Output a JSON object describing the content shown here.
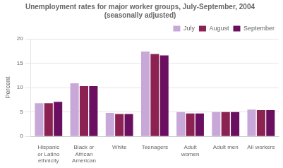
{
  "chart_data": {
    "type": "bar",
    "title": "Unemployment rates for major worker groups, July-September, 2004\n(seasonally adjusted)",
    "y_label": "Percent",
    "categories": [
      "Hispanic\nor Latino\nethnicity",
      "Black or\nAfrican\nAmerican",
      "White",
      "Teenagers",
      "Adult\nwomen",
      "Adult men",
      "All workers"
    ],
    "series": [
      {
        "name": "July",
        "color": "#c8a8d8",
        "values": [
          6.8,
          10.9,
          4.8,
          17.4,
          5.0,
          5.0,
          5.5
        ]
      },
      {
        "name": "August",
        "color": "#8b2252",
        "values": [
          6.8,
          10.3,
          4.6,
          16.9,
          4.7,
          5.0,
          5.4
        ]
      },
      {
        "name": "September",
        "color": "#6b1060",
        "values": [
          7.1,
          10.3,
          4.6,
          16.6,
          4.7,
          5.0,
          5.4
        ]
      }
    ],
    "ylim": [
      0,
      20
    ],
    "yticks": [
      0,
      5,
      10,
      15,
      20
    ],
    "grid": true,
    "legend": "upper right"
  }
}
